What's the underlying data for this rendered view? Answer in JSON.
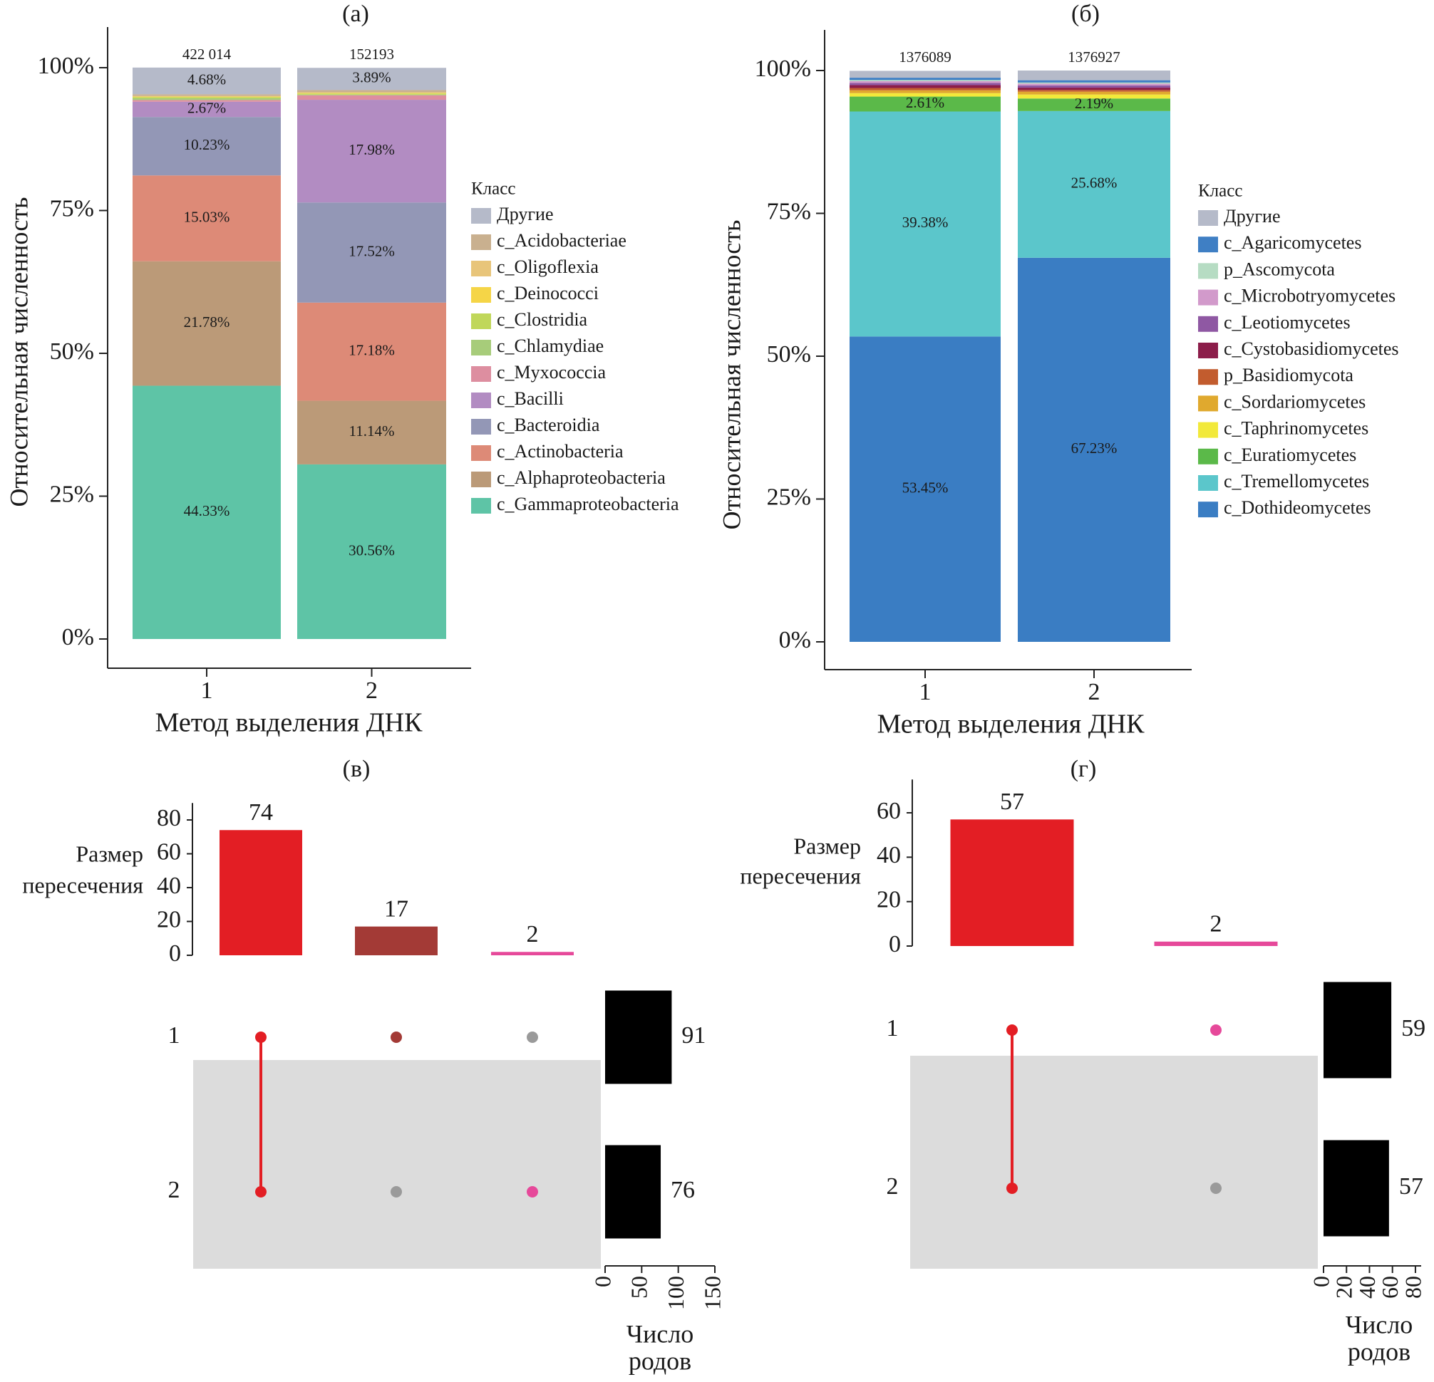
{
  "chart_data": [
    {
      "type": "bar",
      "stacked": true,
      "title": "(а)",
      "ylabel": "Относительная численность",
      "xlabel": "Метод выделения ДНК",
      "categories": [
        "1",
        "2"
      ],
      "top_labels": [
        "422 014",
        "152193"
      ],
      "legend_title": "Класс",
      "ylim": [
        0,
        100
      ],
      "yticks": [
        {
          "value": 0,
          "label": "0%"
        },
        {
          "value": 25,
          "label": "25%"
        },
        {
          "value": 50,
          "label": "50%"
        },
        {
          "value": 75,
          "label": "75%"
        },
        {
          "value": 100,
          "label": "100%"
        }
      ],
      "series": [
        {
          "name": "Другие",
          "color": "#b5bac9",
          "values": [
            4.68,
            3.89
          ],
          "value_labels": [
            "4.68%",
            "3.89%"
          ]
        },
        {
          "name": "c_Acidobacteriae",
          "color": "#c9b08f",
          "values": [
            0.3,
            0.4
          ],
          "value_labels": [
            null,
            null
          ]
        },
        {
          "name": "c_Oligoflexia",
          "color": "#e8c57a",
          "values": [
            0.1,
            0.1
          ],
          "value_labels": [
            null,
            null
          ]
        },
        {
          "name": "c_Deinococci",
          "color": "#f5d547",
          "values": [
            0.1,
            0.1
          ],
          "value_labels": [
            null,
            null
          ]
        },
        {
          "name": "c_Clostridia",
          "color": "#c0d75a",
          "values": [
            0.2,
            0.2
          ],
          "value_labels": [
            null,
            null
          ]
        },
        {
          "name": "c_Chlamydiae",
          "color": "#a7cc7a",
          "values": [
            0.3,
            0.1
          ],
          "value_labels": [
            null,
            null
          ]
        },
        {
          "name": "c_Myxococcia",
          "color": "#dd8ea0",
          "values": [
            0.3,
            0.8
          ],
          "value_labels": [
            null,
            null
          ]
        },
        {
          "name": "c_Bacilli",
          "color": "#b28cc2",
          "values": [
            2.67,
            17.98
          ],
          "value_labels": [
            "2.67%",
            "17.98%"
          ]
        },
        {
          "name": "c_Bacteroidia",
          "color": "#9397b6",
          "values": [
            10.23,
            17.52
          ],
          "value_labels": [
            "10.23%",
            "17.52%"
          ]
        },
        {
          "name": "c_Actinobacteria",
          "color": "#dd8a77",
          "values": [
            15.03,
            17.18
          ],
          "value_labels": [
            "15.03%",
            "17.18%"
          ]
        },
        {
          "name": "c_Alphaproteobacteria",
          "color": "#bb9a78",
          "values": [
            21.78,
            11.14
          ],
          "value_labels": [
            "21.78%",
            "11.14%"
          ]
        },
        {
          "name": "c_Gammaproteobacteria",
          "color": "#5ec4a6",
          "values": [
            44.33,
            30.56
          ],
          "value_labels": [
            "44.33%",
            "30.56%"
          ]
        }
      ]
    },
    {
      "type": "bar",
      "stacked": true,
      "title": "(б)",
      "ylabel": "Относительная численность",
      "xlabel": "Метод выделения ДНК",
      "categories": [
        "1",
        "2"
      ],
      "top_labels": [
        "1376089",
        "1376927"
      ],
      "legend_title": "Класс",
      "ylim": [
        0,
        100
      ],
      "yticks": [
        {
          "value": 0,
          "label": "0%"
        },
        {
          "value": 25,
          "label": "25%"
        },
        {
          "value": 50,
          "label": "50%"
        },
        {
          "value": 75,
          "label": "75%"
        },
        {
          "value": 100,
          "label": "100%"
        }
      ],
      "series": [
        {
          "name": "Другие",
          "color": "#b5bac9",
          "values": [
            1.2,
            1.7
          ],
          "value_labels": [
            null,
            null
          ]
        },
        {
          "name": "c_Agaricomycetes",
          "color": "#3f7fc4",
          "values": [
            0.4,
            0.4
          ],
          "value_labels": [
            null,
            null
          ]
        },
        {
          "name": "p_Ascomycota",
          "color": "#b6dcc3",
          "values": [
            0.2,
            0.2
          ],
          "value_labels": [
            null,
            null
          ]
        },
        {
          "name": "c_Microbotryomycetes",
          "color": "#d29acb",
          "values": [
            0.3,
            0.3
          ],
          "value_labels": [
            null,
            null
          ]
        },
        {
          "name": "c_Leotiomycetes",
          "color": "#8f58a3",
          "values": [
            0.4,
            0.4
          ],
          "value_labels": [
            null,
            null
          ]
        },
        {
          "name": "c_Cystobasidiomycetes",
          "color": "#8c1d4a",
          "values": [
            0.5,
            0.4
          ],
          "value_labels": [
            null,
            null
          ]
        },
        {
          "name": "p_Basidiomycota",
          "color": "#c25c2e",
          "values": [
            0.4,
            0.3
          ],
          "value_labels": [
            null,
            null
          ]
        },
        {
          "name": "c_Sordariomycetes",
          "color": "#e0a92e",
          "values": [
            0.5,
            0.5
          ],
          "value_labels": [
            null,
            null
          ]
        },
        {
          "name": "c_Taphrinomycetes",
          "color": "#f2e93a",
          "values": [
            0.6,
            0.7
          ],
          "value_labels": [
            null,
            null
          ]
        },
        {
          "name": "c_Euratiomycetes",
          "color": "#5bb949",
          "values": [
            2.61,
            2.19
          ],
          "value_labels": [
            "2.61%",
            "2.19%"
          ]
        },
        {
          "name": "c_Tremellomycetes",
          "color": "#5bc6cb",
          "values": [
            39.38,
            25.68
          ],
          "value_labels": [
            "39.38%",
            "25.68%"
          ]
        },
        {
          "name": "c_Dothideomycetes",
          "color": "#3a7dc3",
          "values": [
            53.45,
            67.23
          ],
          "value_labels": [
            "53.45%",
            "67.23%"
          ]
        }
      ]
    },
    {
      "type": "upset",
      "title": "(в)",
      "ylabel_lines": [
        "Размер",
        "пересечения"
      ],
      "values": [
        74,
        17,
        2
      ],
      "colors": [
        "#e31e24",
        "#a33a36",
        "#e6499a"
      ],
      "ylim": [
        0,
        90
      ],
      "yticks": [
        0,
        20,
        40,
        60,
        80
      ],
      "sets": [
        "1",
        "2"
      ],
      "membership": [
        [
          1,
          1
        ],
        [
          1,
          0
        ],
        [
          0,
          1
        ]
      ],
      "set_sizes": [
        91,
        76
      ],
      "set_size_color": "#000000",
      "xlim": [
        0,
        150
      ],
      "xticks": [
        0,
        50,
        100,
        150
      ],
      "xlabel_lines": [
        "Число",
        "родов"
      ]
    },
    {
      "type": "upset",
      "title": "(г)",
      "ylabel_lines": [
        "Размер",
        "пересечения"
      ],
      "values": [
        57,
        2
      ],
      "colors": [
        "#e31e24",
        "#e6499a"
      ],
      "ylim": [
        0,
        75
      ],
      "yticks": [
        0,
        20,
        40,
        60
      ],
      "sets": [
        "1",
        "2"
      ],
      "membership": [
        [
          1,
          1
        ],
        [
          1,
          0
        ]
      ],
      "set_sizes": [
        59,
        57
      ],
      "set_size_color": "#000000",
      "xlim": [
        0,
        85
      ],
      "xticks": [
        0,
        20,
        40,
        60,
        80
      ],
      "xlabel_lines": [
        "Число",
        "родов"
      ]
    }
  ]
}
